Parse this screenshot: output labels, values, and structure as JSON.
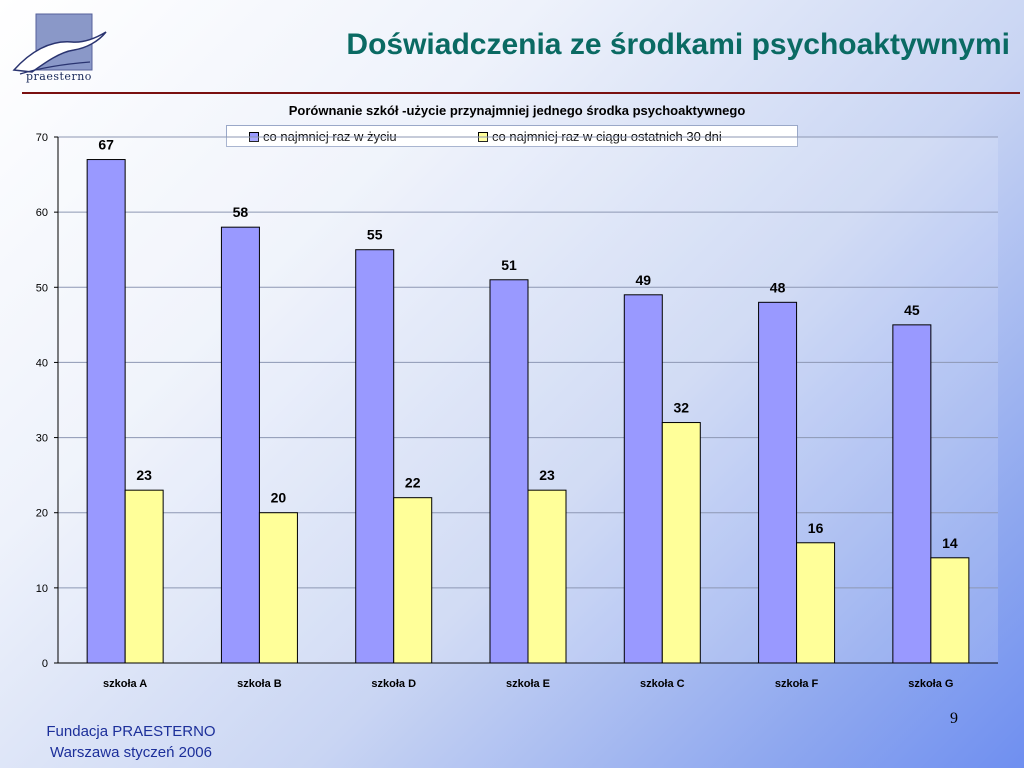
{
  "logo": {
    "text": "praesterno",
    "icon": "bird-logo-icon"
  },
  "slide": {
    "title": "Doświadczenia ze środkami psychoaktywnymi",
    "page_number": "9"
  },
  "footer": {
    "line1": "Fundacja PRAESTERNO",
    "line2": "Warszawa styczeń 2006"
  },
  "chart_data": {
    "type": "bar",
    "title": "Porównanie szkół -użycie przynajmniej jednego środka psychoaktywnego",
    "categories": [
      "szkoła A",
      "szkoła B",
      "szkoła D",
      "szkoła E",
      "szkoła C",
      "szkoła F",
      "szkoła G"
    ],
    "series": [
      {
        "name": "co najmniej raz w życiu",
        "values": [
          67,
          58,
          55,
          51,
          49,
          48,
          45
        ],
        "color": "#9999ff"
      },
      {
        "name": "co najmniej raz w ciągu ostatnich 30 dni",
        "values": [
          23,
          20,
          22,
          23,
          32,
          16,
          14
        ],
        "color": "#ffff99"
      }
    ],
    "ylim": [
      0,
      70
    ],
    "yticks": [
      0,
      10,
      20,
      30,
      40,
      50,
      60,
      70
    ],
    "grid": true,
    "legend": "top"
  }
}
